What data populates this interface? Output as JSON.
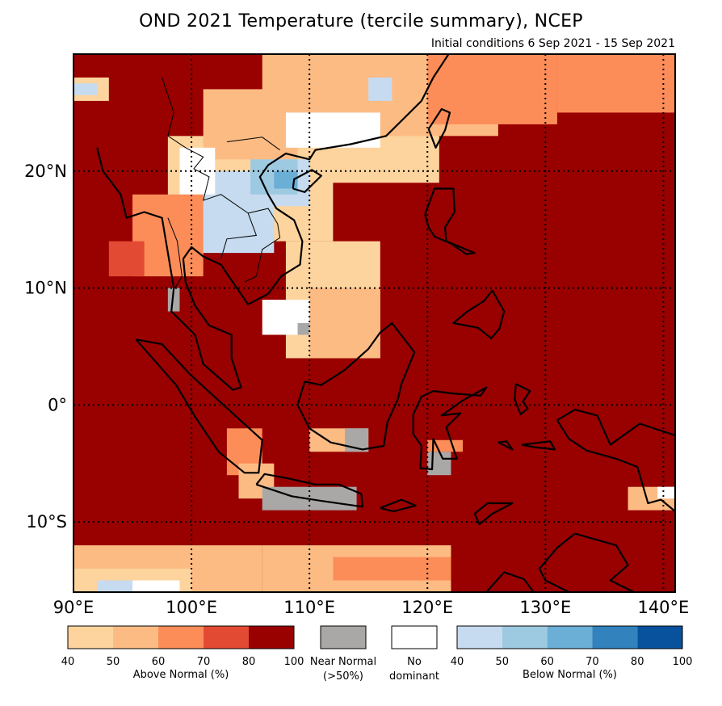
{
  "title": "OND 2021 Temperature (tercile summary), NCEP",
  "subtitle": "Initial conditions 6 Sep 2021 - 15 Sep 2021",
  "map": {
    "lon_range": [
      90,
      141
    ],
    "lat_range": [
      -16,
      30
    ],
    "lon_ticks": [
      {
        "value": 90,
        "label": "90°E"
      },
      {
        "value": 100,
        "label": "100°E"
      },
      {
        "value": 110,
        "label": "110°E"
      },
      {
        "value": 120,
        "label": "120°E"
      },
      {
        "value": 130,
        "label": "130°E"
      },
      {
        "value": 140,
        "label": "140°E"
      }
    ],
    "lat_ticks": [
      {
        "value": 20,
        "label": "20°N"
      },
      {
        "value": 10,
        "label": "10°N"
      },
      {
        "value": 0,
        "label": "0°"
      },
      {
        "value": -10,
        "label": "10°S"
      }
    ],
    "background_category": "above-80-100",
    "regions": [
      {
        "category": "above-40-50",
        "lon": [
          107,
          121
        ],
        "lat": [
          19,
          27
        ]
      },
      {
        "category": "above-50-60",
        "lon": [
          106,
          126
        ],
        "lat": [
          23,
          30
        ]
      },
      {
        "category": "above-60-70",
        "lon": [
          120,
          131
        ],
        "lat": [
          24,
          30
        ]
      },
      {
        "category": "above-60-70",
        "lon": [
          131,
          141
        ],
        "lat": [
          25,
          30
        ]
      },
      {
        "category": "above-40-50",
        "lon": [
          98,
          112
        ],
        "lat": [
          14,
          23
        ]
      },
      {
        "category": "above-50-60",
        "lon": [
          101,
          109
        ],
        "lat": [
          21,
          27
        ]
      },
      {
        "category": "below-40-50",
        "lon": [
          99,
          107
        ],
        "lat": [
          13,
          20
        ]
      },
      {
        "category": "below-40-50",
        "lon": [
          107,
          110
        ],
        "lat": [
          17,
          21
        ]
      },
      {
        "category": "below-50-60",
        "lon": [
          105,
          109
        ],
        "lat": [
          18,
          21
        ]
      },
      {
        "category": "below-60-70",
        "lon": [
          107,
          109
        ],
        "lat": [
          18.5,
          20
        ]
      },
      {
        "category": "no-dominant",
        "lon": [
          99,
          102
        ],
        "lat": [
          18,
          22
        ]
      },
      {
        "category": "no-dominant",
        "lon": [
          108,
          116
        ],
        "lat": [
          22,
          25
        ]
      },
      {
        "category": "below-40-50",
        "lon": [
          115,
          117
        ],
        "lat": [
          26,
          28
        ]
      },
      {
        "category": "above-40-50",
        "lon": [
          108,
          116
        ],
        "lat": [
          4,
          14
        ]
      },
      {
        "category": "no-dominant",
        "lon": [
          106,
          110
        ],
        "lat": [
          6,
          9
        ]
      },
      {
        "category": "above-50-60",
        "lon": [
          110,
          116
        ],
        "lat": [
          4,
          10
        ]
      },
      {
        "category": "above-60-70",
        "lon": [
          95,
          101
        ],
        "lat": [
          11,
          18
        ]
      },
      {
        "category": "above-70-80",
        "lon": [
          93,
          96
        ],
        "lat": [
          11,
          14
        ]
      },
      {
        "category": "near-normal",
        "lon": [
          98,
          99
        ],
        "lat": [
          8,
          10
        ]
      },
      {
        "category": "near-normal",
        "lon": [
          109,
          110
        ],
        "lat": [
          6,
          7
        ]
      },
      {
        "category": "above-60-70",
        "lon": [
          103,
          106
        ],
        "lat": [
          -6,
          -2
        ]
      },
      {
        "category": "above-50-60",
        "lon": [
          104,
          107
        ],
        "lat": [
          -8,
          -5
        ]
      },
      {
        "category": "near-normal",
        "lon": [
          106,
          114
        ],
        "lat": [
          -9,
          -7
        ]
      },
      {
        "category": "above-50-60",
        "lon": [
          110,
          115
        ],
        "lat": [
          -4,
          -2
        ]
      },
      {
        "category": "near-normal",
        "lon": [
          113,
          115
        ],
        "lat": [
          -4,
          -2
        ]
      },
      {
        "category": "near-normal",
        "lon": [
          120,
          122
        ],
        "lat": [
          -6,
          -4
        ]
      },
      {
        "category": "above-60-70",
        "lon": [
          120,
          123
        ],
        "lat": [
          -4,
          -3
        ]
      },
      {
        "category": "above-50-60",
        "lon": [
          137,
          141
        ],
        "lat": [
          -9,
          -7
        ]
      },
      {
        "category": "no-dominant",
        "lon": [
          139.5,
          141
        ],
        "lat": [
          -8,
          -7
        ]
      },
      {
        "category": "above-50-60",
        "lon": [
          90,
          106
        ],
        "lat": [
          -16,
          -12
        ]
      },
      {
        "category": "above-40-50",
        "lon": [
          90,
          100
        ],
        "lat": [
          -16,
          -14
        ]
      },
      {
        "category": "above-50-60",
        "lon": [
          106,
          122
        ],
        "lat": [
          -16,
          -12
        ]
      },
      {
        "category": "above-60-70",
        "lon": [
          112,
          122
        ],
        "lat": [
          -15,
          -13
        ]
      },
      {
        "category": "below-40-50",
        "lon": [
          92,
          95
        ],
        "lat": [
          -16,
          -15
        ]
      },
      {
        "category": "no-dominant",
        "lon": [
          95,
          99
        ],
        "lat": [
          -16,
          -15
        ]
      },
      {
        "category": "above-40-50",
        "lon": [
          90,
          93
        ],
        "lat": [
          26,
          28
        ]
      },
      {
        "category": "below-40-50",
        "lon": [
          90,
          92
        ],
        "lat": [
          26.5,
          27.5
        ]
      }
    ]
  },
  "legend": {
    "above": {
      "label": "Above Normal (%)",
      "ticks": [
        "40",
        "50",
        "60",
        "70",
        "80",
        "100"
      ],
      "colors": [
        "#fdd49e",
        "#fdbb84",
        "#fc8d59",
        "#e34a33",
        "#990000"
      ]
    },
    "near": {
      "label_line1": "Near Normal",
      "label_line2": "(>50%)",
      "color": "#aaa7a7"
    },
    "none": {
      "label_line1": "No",
      "label_line2": "dominant",
      "color": "#ffffff"
    },
    "below": {
      "label": "Below Normal (%)",
      "ticks": [
        "40",
        "50",
        "60",
        "70",
        "80",
        "100"
      ],
      "colors": [
        "#c6dbef",
        "#9ecae1",
        "#6baed6",
        "#3182bd",
        "#08519c"
      ]
    }
  },
  "colors": {
    "above-40-50": "#fdd49e",
    "above-50-60": "#fdbb84",
    "above-60-70": "#fc8d59",
    "above-70-80": "#e34a33",
    "above-80-100": "#990000",
    "below-40-50": "#c6dbef",
    "below-50-60": "#9ecae1",
    "below-60-70": "#6baed6",
    "below-70-80": "#3182bd",
    "below-80-100": "#08519c",
    "near-normal": "#aaa7a7",
    "no-dominant": "#ffffff"
  }
}
